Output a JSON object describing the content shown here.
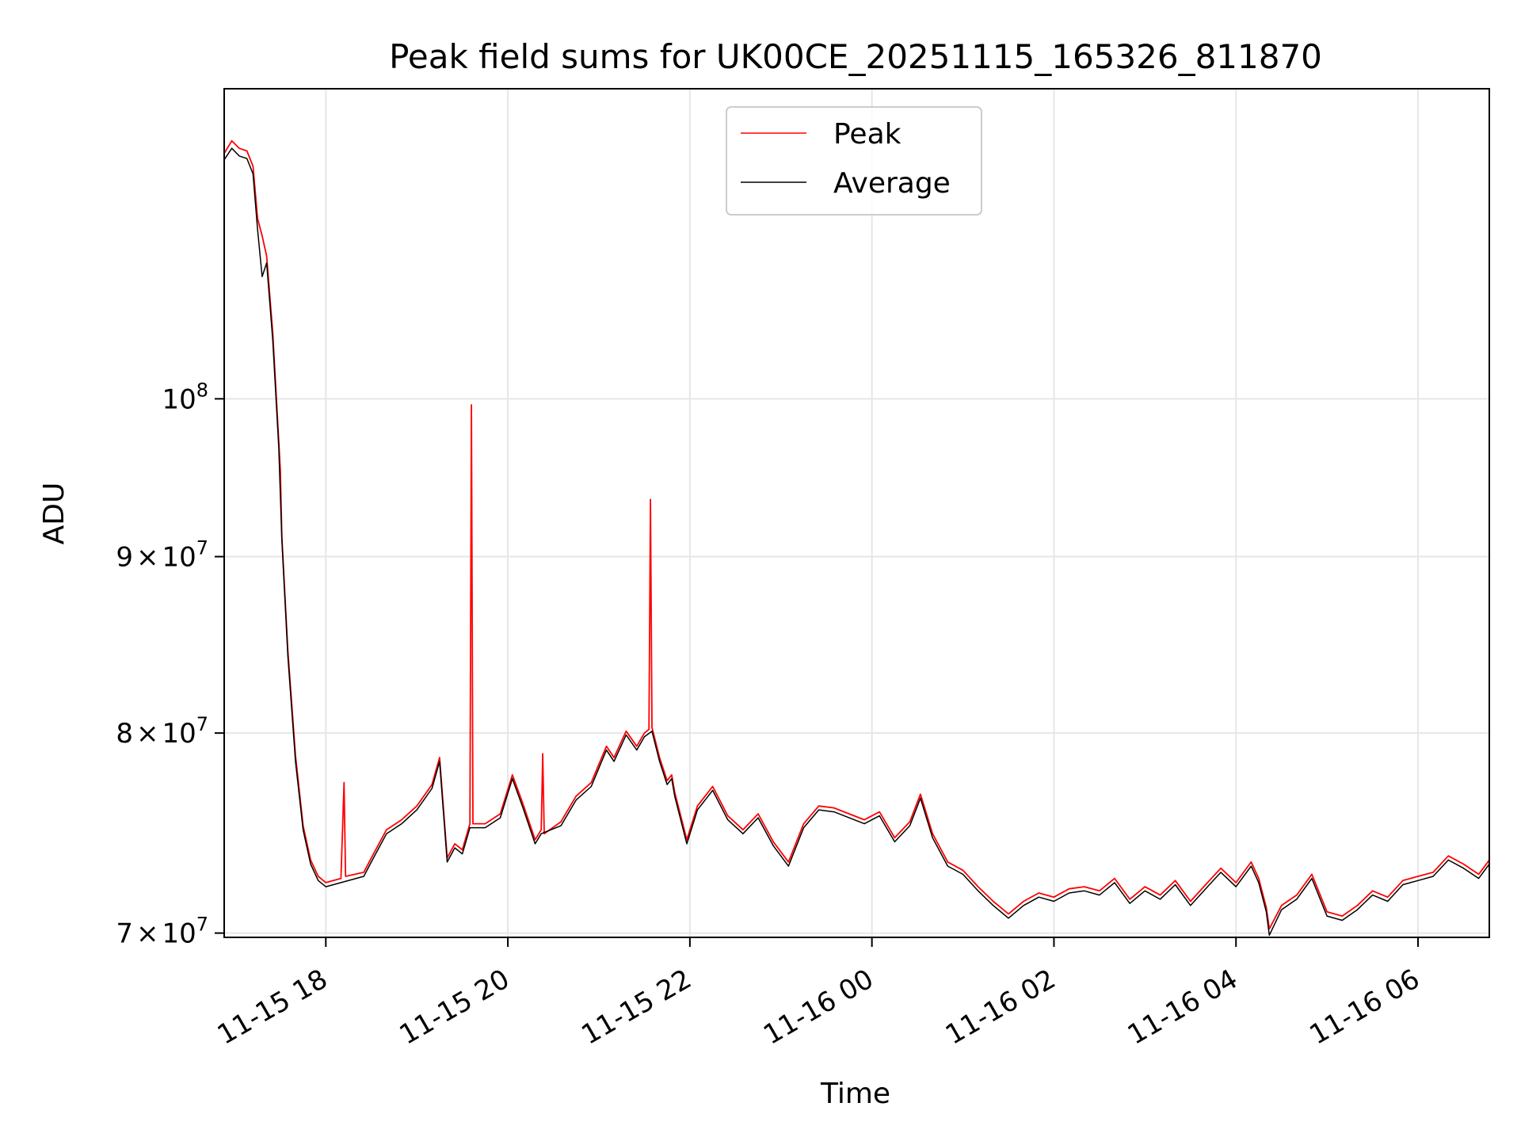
{
  "chart_data": {
    "type": "line",
    "title": "Peak field sums for UK00CE_20251115_165326_811870",
    "xlabel": "Time",
    "ylabel": "ADU",
    "yscale": "log",
    "ylim": [
      69800000,
      123000000
    ],
    "xlim": [
      "2025-11-15 16:53",
      "2025-11-16 06:47"
    ],
    "grid": true,
    "legend_position": "top-center",
    "x_ticks": [
      {
        "value": "2025-11-15 18:00",
        "label": "11-15 18"
      },
      {
        "value": "2025-11-15 20:00",
        "label": "11-15 20"
      },
      {
        "value": "2025-11-15 22:00",
        "label": "11-15 22"
      },
      {
        "value": "2025-11-16 00:00",
        "label": "11-16 00"
      },
      {
        "value": "2025-11-16 02:00",
        "label": "11-16 02"
      },
      {
        "value": "2025-11-16 04:00",
        "label": "11-16 04"
      },
      {
        "value": "2025-11-16 06:00",
        "label": "11-16 06"
      }
    ],
    "y_ticks": [
      {
        "value": 70000000,
        "base": "7",
        "mult": "×",
        "exp_base": "10",
        "exp": "7"
      },
      {
        "value": 80000000,
        "base": "8",
        "mult": "×",
        "exp_base": "10",
        "exp": "7"
      },
      {
        "value": 90000000,
        "base": "9",
        "mult": "×",
        "exp_base": "10",
        "exp": "7"
      },
      {
        "value": 100000000,
        "base": "",
        "mult": "",
        "exp_base": "10",
        "exp": "8"
      }
    ],
    "series": [
      {
        "name": "Peak",
        "color": "#ff0000",
        "points": [
          [
            "2025-11-15 16:53",
            117800000
          ],
          [
            "2025-11-15 16:58",
            118800000
          ],
          [
            "2025-11-15 17:03",
            118200000
          ],
          [
            "2025-11-15 17:08",
            118000000
          ],
          [
            "2025-11-15 17:12",
            116800000
          ],
          [
            "2025-11-15 17:15",
            112800000
          ],
          [
            "2025-11-15 17:18",
            111500000
          ],
          [
            "2025-11-15 17:21",
            110000000
          ],
          [
            "2025-11-15 17:25",
            104500000
          ],
          [
            "2025-11-15 17:29",
            97200000
          ],
          [
            "2025-11-15 17:30",
            95300000
          ],
          [
            "2025-11-15 17:31",
            91200000
          ],
          [
            "2025-11-15 17:35",
            84500000
          ],
          [
            "2025-11-15 17:40",
            78800000
          ],
          [
            "2025-11-15 17:45",
            75200000
          ],
          [
            "2025-11-15 17:50",
            73500000
          ],
          [
            "2025-11-15 17:55",
            72700000
          ],
          [
            "2025-11-15 18:00",
            72400000
          ],
          [
            "2025-11-15 18:10",
            72600000
          ],
          [
            "2025-11-15 18:12",
            77400000
          ],
          [
            "2025-11-15 18:13",
            72700000
          ],
          [
            "2025-11-15 18:25",
            72900000
          ],
          [
            "2025-11-15 18:30",
            73600000
          ],
          [
            "2025-11-15 18:40",
            75000000
          ],
          [
            "2025-11-15 18:50",
            75500000
          ],
          [
            "2025-11-15 19:00",
            76200000
          ],
          [
            "2025-11-15 19:10",
            77300000
          ],
          [
            "2025-11-15 19:15",
            78700000
          ],
          [
            "2025-11-15 19:20",
            73600000
          ],
          [
            "2025-11-15 19:25",
            74300000
          ],
          [
            "2025-11-15 19:30",
            74000000
          ],
          [
            "2025-11-15 19:35",
            75300000
          ],
          [
            "2025-11-15 19:36",
            99600000
          ],
          [
            "2025-11-15 19:37",
            75300000
          ],
          [
            "2025-11-15 19:45",
            75300000
          ],
          [
            "2025-11-15 19:55",
            75800000
          ],
          [
            "2025-11-15 20:03",
            77800000
          ],
          [
            "2025-11-15 20:10",
            76300000
          ],
          [
            "2025-11-15 20:18",
            74500000
          ],
          [
            "2025-11-15 20:22",
            75000000
          ],
          [
            "2025-11-15 20:23",
            78900000
          ],
          [
            "2025-11-15 20:24",
            74800000
          ],
          [
            "2025-11-15 20:35",
            75400000
          ],
          [
            "2025-11-15 20:45",
            76700000
          ],
          [
            "2025-11-15 20:55",
            77400000
          ],
          [
            "2025-11-15 21:05",
            79300000
          ],
          [
            "2025-11-15 21:10",
            78700000
          ],
          [
            "2025-11-15 21:18",
            80100000
          ],
          [
            "2025-11-15 21:25",
            79300000
          ],
          [
            "2025-11-15 21:30",
            80000000
          ],
          [
            "2025-11-15 21:33",
            80200000
          ],
          [
            "2025-11-15 21:34",
            93500000
          ],
          [
            "2025-11-15 21:35",
            80300000
          ],
          [
            "2025-11-15 21:40",
            78700000
          ],
          [
            "2025-11-15 21:45",
            77500000
          ],
          [
            "2025-11-15 21:48",
            77800000
          ],
          [
            "2025-11-15 21:50",
            76900000
          ],
          [
            "2025-11-15 21:58",
            74500000
          ],
          [
            "2025-11-15 22:05",
            76200000
          ],
          [
            "2025-11-15 22:15",
            77200000
          ],
          [
            "2025-11-15 22:25",
            75700000
          ],
          [
            "2025-11-15 22:35",
            75000000
          ],
          [
            "2025-11-15 22:45",
            75800000
          ],
          [
            "2025-11-15 22:55",
            74400000
          ],
          [
            "2025-11-15 23:05",
            73400000
          ],
          [
            "2025-11-15 23:15",
            75300000
          ],
          [
            "2025-11-15 23:25",
            76200000
          ],
          [
            "2025-11-15 23:35",
            76100000
          ],
          [
            "2025-11-15 23:45",
            75800000
          ],
          [
            "2025-11-15 23:55",
            75500000
          ],
          [
            "2025-11-16 00:05",
            75900000
          ],
          [
            "2025-11-16 00:15",
            74600000
          ],
          [
            "2025-11-16 00:25",
            75400000
          ],
          [
            "2025-11-16 00:32",
            76800000
          ],
          [
            "2025-11-16 00:40",
            74800000
          ],
          [
            "2025-11-16 00:50",
            73400000
          ],
          [
            "2025-11-16 01:00",
            73000000
          ],
          [
            "2025-11-16 01:10",
            72200000
          ],
          [
            "2025-11-16 01:20",
            71500000
          ],
          [
            "2025-11-16 01:30",
            70900000
          ],
          [
            "2025-11-16 01:40",
            71500000
          ],
          [
            "2025-11-16 01:50",
            71900000
          ],
          [
            "2025-11-16 02:00",
            71700000
          ],
          [
            "2025-11-16 02:10",
            72100000
          ],
          [
            "2025-11-16 02:20",
            72200000
          ],
          [
            "2025-11-16 02:30",
            72000000
          ],
          [
            "2025-11-16 02:40",
            72600000
          ],
          [
            "2025-11-16 02:50",
            71600000
          ],
          [
            "2025-11-16 03:00",
            72200000
          ],
          [
            "2025-11-16 03:10",
            71800000
          ],
          [
            "2025-11-16 03:20",
            72500000
          ],
          [
            "2025-11-16 03:30",
            71500000
          ],
          [
            "2025-11-16 03:40",
            72300000
          ],
          [
            "2025-11-16 03:50",
            73100000
          ],
          [
            "2025-11-16 04:00",
            72400000
          ],
          [
            "2025-11-16 04:10",
            73400000
          ],
          [
            "2025-11-16 04:15",
            72600000
          ],
          [
            "2025-11-16 04:20",
            71200000
          ],
          [
            "2025-11-16 04:22",
            70200000
          ],
          [
            "2025-11-16 04:30",
            71300000
          ],
          [
            "2025-11-16 04:40",
            71800000
          ],
          [
            "2025-11-16 04:50",
            72800000
          ],
          [
            "2025-11-16 05:00",
            71000000
          ],
          [
            "2025-11-16 05:10",
            70800000
          ],
          [
            "2025-11-16 05:20",
            71300000
          ],
          [
            "2025-11-16 05:30",
            72000000
          ],
          [
            "2025-11-16 05:40",
            71700000
          ],
          [
            "2025-11-16 05:50",
            72500000
          ],
          [
            "2025-11-16 06:00",
            72700000
          ],
          [
            "2025-11-16 06:10",
            72900000
          ],
          [
            "2025-11-16 06:20",
            73700000
          ],
          [
            "2025-11-16 06:30",
            73300000
          ],
          [
            "2025-11-16 06:40",
            72800000
          ],
          [
            "2025-11-16 06:47",
            73500000
          ]
        ]
      },
      {
        "name": "Average",
        "color": "#000000",
        "points": [
          [
            "2025-11-15 16:53",
            117300000
          ],
          [
            "2025-11-15 16:58",
            118200000
          ],
          [
            "2025-11-15 17:03",
            117600000
          ],
          [
            "2025-11-15 17:08",
            117400000
          ],
          [
            "2025-11-15 17:12",
            116200000
          ],
          [
            "2025-11-15 17:15",
            112000000
          ],
          [
            "2025-11-15 17:18",
            108500000
          ],
          [
            "2025-11-15 17:21",
            109500000
          ],
          [
            "2025-11-15 17:25",
            104000000
          ],
          [
            "2025-11-15 17:29",
            96800000
          ],
          [
            "2025-11-15 17:31",
            91000000
          ],
          [
            "2025-11-15 17:35",
            84200000
          ],
          [
            "2025-11-15 17:40",
            78500000
          ],
          [
            "2025-11-15 17:45",
            75000000
          ],
          [
            "2025-11-15 17:50",
            73300000
          ],
          [
            "2025-11-15 17:55",
            72500000
          ],
          [
            "2025-11-15 18:00",
            72200000
          ],
          [
            "2025-11-15 18:10",
            72400000
          ],
          [
            "2025-11-15 18:25",
            72700000
          ],
          [
            "2025-11-15 18:30",
            73400000
          ],
          [
            "2025-11-15 18:40",
            74800000
          ],
          [
            "2025-11-15 18:50",
            75300000
          ],
          [
            "2025-11-15 19:00",
            76000000
          ],
          [
            "2025-11-15 19:10",
            77100000
          ],
          [
            "2025-11-15 19:15",
            78500000
          ],
          [
            "2025-11-15 19:20",
            73400000
          ],
          [
            "2025-11-15 19:25",
            74100000
          ],
          [
            "2025-11-15 19:30",
            73800000
          ],
          [
            "2025-11-15 19:35",
            75100000
          ],
          [
            "2025-11-15 19:45",
            75100000
          ],
          [
            "2025-11-15 19:55",
            75600000
          ],
          [
            "2025-11-15 20:03",
            77600000
          ],
          [
            "2025-11-15 20:10",
            76100000
          ],
          [
            "2025-11-15 20:18",
            74300000
          ],
          [
            "2025-11-15 20:22",
            74800000
          ],
          [
            "2025-11-15 20:35",
            75200000
          ],
          [
            "2025-11-15 20:45",
            76500000
          ],
          [
            "2025-11-15 20:55",
            77200000
          ],
          [
            "2025-11-15 21:05",
            79100000
          ],
          [
            "2025-11-15 21:10",
            78500000
          ],
          [
            "2025-11-15 21:18",
            79900000
          ],
          [
            "2025-11-15 21:25",
            79100000
          ],
          [
            "2025-11-15 21:30",
            79800000
          ],
          [
            "2025-11-15 21:35",
            80100000
          ],
          [
            "2025-11-15 21:40",
            78500000
          ],
          [
            "2025-11-15 21:45",
            77300000
          ],
          [
            "2025-11-15 21:48",
            77600000
          ],
          [
            "2025-11-15 21:50",
            76700000
          ],
          [
            "2025-11-15 21:58",
            74300000
          ],
          [
            "2025-11-15 22:05",
            76000000
          ],
          [
            "2025-11-15 22:15",
            77000000
          ],
          [
            "2025-11-15 22:25",
            75500000
          ],
          [
            "2025-11-15 22:35",
            74800000
          ],
          [
            "2025-11-15 22:45",
            75600000
          ],
          [
            "2025-11-15 22:55",
            74200000
          ],
          [
            "2025-11-15 23:05",
            73200000
          ],
          [
            "2025-11-15 23:15",
            75100000
          ],
          [
            "2025-11-15 23:25",
            76000000
          ],
          [
            "2025-11-15 23:35",
            75900000
          ],
          [
            "2025-11-15 23:45",
            75600000
          ],
          [
            "2025-11-15 23:55",
            75300000
          ],
          [
            "2025-11-16 00:05",
            75700000
          ],
          [
            "2025-11-16 00:15",
            74400000
          ],
          [
            "2025-11-16 00:25",
            75200000
          ],
          [
            "2025-11-16 00:32",
            76600000
          ],
          [
            "2025-11-16 00:40",
            74600000
          ],
          [
            "2025-11-16 00:50",
            73200000
          ],
          [
            "2025-11-16 01:00",
            72800000
          ],
          [
            "2025-11-16 01:10",
            72000000
          ],
          [
            "2025-11-16 01:20",
            71300000
          ],
          [
            "2025-11-16 01:30",
            70700000
          ],
          [
            "2025-11-16 01:40",
            71300000
          ],
          [
            "2025-11-16 01:50",
            71700000
          ],
          [
            "2025-11-16 02:00",
            71500000
          ],
          [
            "2025-11-16 02:10",
            71900000
          ],
          [
            "2025-11-16 02:20",
            72000000
          ],
          [
            "2025-11-16 02:30",
            71800000
          ],
          [
            "2025-11-16 02:40",
            72400000
          ],
          [
            "2025-11-16 02:50",
            71400000
          ],
          [
            "2025-11-16 03:00",
            72000000
          ],
          [
            "2025-11-16 03:10",
            71600000
          ],
          [
            "2025-11-16 03:20",
            72300000
          ],
          [
            "2025-11-16 03:30",
            71300000
          ],
          [
            "2025-11-16 03:40",
            72100000
          ],
          [
            "2025-11-16 03:50",
            72900000
          ],
          [
            "2025-11-16 04:00",
            72200000
          ],
          [
            "2025-11-16 04:10",
            73200000
          ],
          [
            "2025-11-16 04:15",
            72400000
          ],
          [
            "2025-11-16 04:20",
            71000000
          ],
          [
            "2025-11-16 04:22",
            69900000
          ],
          [
            "2025-11-16 04:30",
            71100000
          ],
          [
            "2025-11-16 04:40",
            71600000
          ],
          [
            "2025-11-16 04:50",
            72600000
          ],
          [
            "2025-11-16 05:00",
            70800000
          ],
          [
            "2025-11-16 05:10",
            70600000
          ],
          [
            "2025-11-16 05:20",
            71100000
          ],
          [
            "2025-11-16 05:30",
            71800000
          ],
          [
            "2025-11-16 05:40",
            71500000
          ],
          [
            "2025-11-16 05:50",
            72300000
          ],
          [
            "2025-11-16 06:00",
            72500000
          ],
          [
            "2025-11-16 06:10",
            72700000
          ],
          [
            "2025-11-16 06:20",
            73500000
          ],
          [
            "2025-11-16 06:30",
            73100000
          ],
          [
            "2025-11-16 06:40",
            72600000
          ],
          [
            "2025-11-16 06:47",
            73300000
          ]
        ]
      }
    ]
  }
}
